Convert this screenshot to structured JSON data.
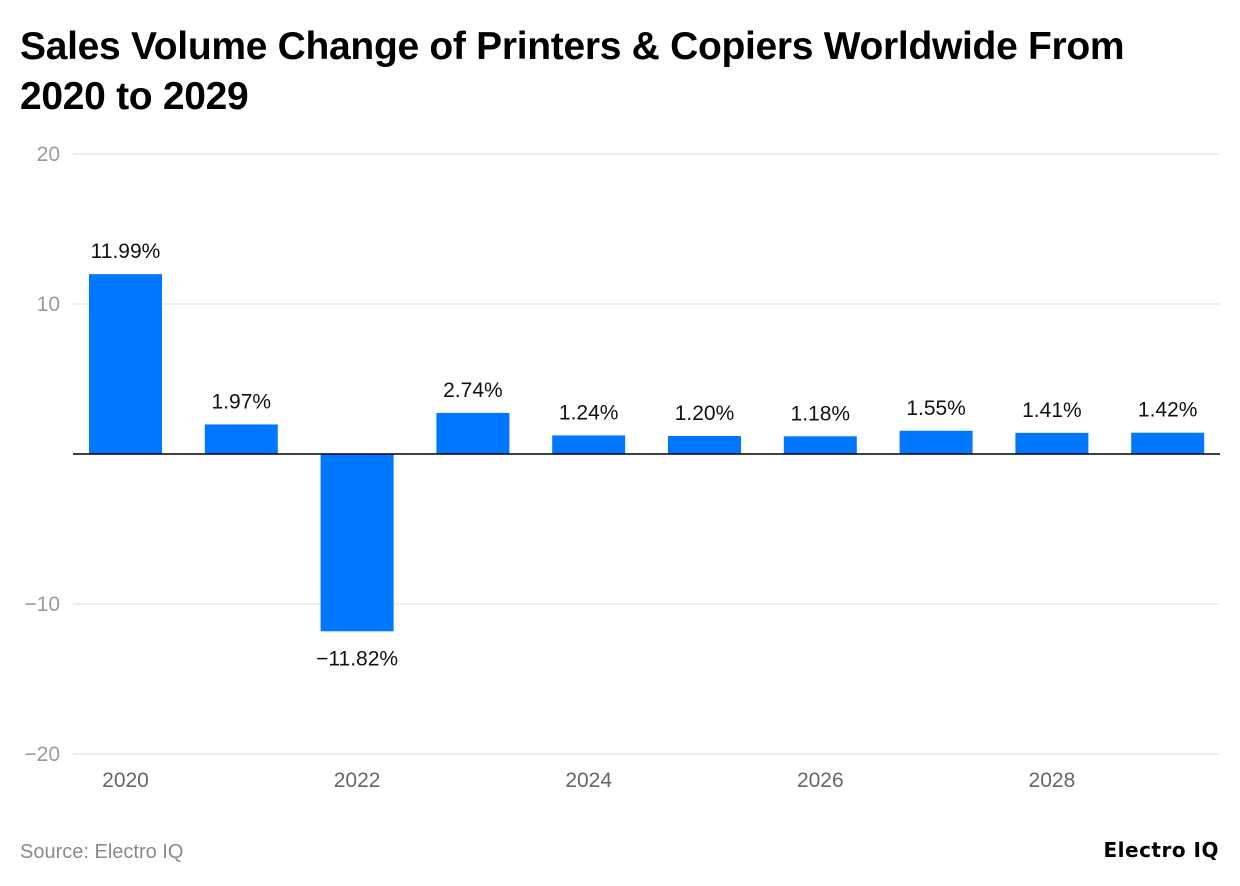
{
  "title": "Sales Volume Change of Printers & Copiers Worldwide From 2020 to 2029",
  "footer": {
    "source": "Source: Electro IQ",
    "brand": "Electro IQ"
  },
  "colors": {
    "bar": "#0077ff",
    "grid": "#e3e3e3",
    "zero_line": "#000000",
    "tick_text": "#9a9a9a",
    "label_text": "#111111"
  },
  "chart_data": {
    "type": "bar",
    "categories": [
      "2020",
      "2021",
      "2022",
      "2023",
      "2024",
      "2025",
      "2026",
      "2027",
      "2028",
      "2029"
    ],
    "values": [
      11.99,
      1.97,
      -11.82,
      2.74,
      1.24,
      1.2,
      1.18,
      1.55,
      1.41,
      1.42
    ],
    "value_labels": [
      "11.99%",
      "1.97%",
      "−11.82%",
      "2.74%",
      "1.24%",
      "1.20%",
      "1.18%",
      "1.55%",
      "1.41%",
      "1.42%"
    ],
    "x_tick_labels": [
      "2020",
      "",
      "2022",
      "",
      "2024",
      "",
      "2026",
      "",
      "2028",
      ""
    ],
    "y_ticks": [
      20,
      10,
      0,
      -10,
      -20
    ],
    "y_tick_labels": [
      "20",
      "10",
      "",
      "−10",
      "−20"
    ],
    "ylim": [
      -20,
      20
    ],
    "grid": true,
    "legend": "none"
  }
}
